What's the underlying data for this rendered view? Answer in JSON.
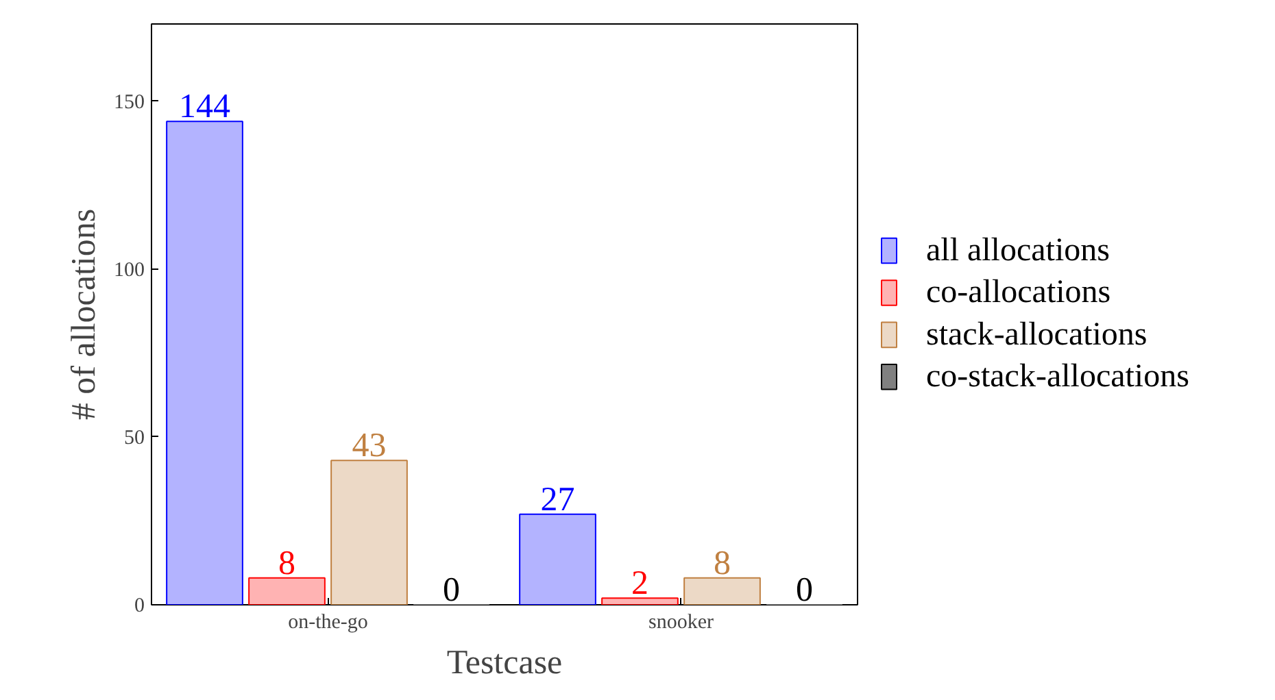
{
  "chart_data": {
    "type": "bar",
    "xlabel": "Testcase",
    "ylabel": "# of allocations",
    "categories": [
      "on-the-go",
      "snooker"
    ],
    "series": [
      {
        "name": "all allocations",
        "color": "#b3b3ff",
        "values": [
          144,
          27
        ]
      },
      {
        "name": "co-allocations",
        "color": "#ffb3b3",
        "values": [
          8,
          2
        ]
      },
      {
        "name": "stack-allocations",
        "color": "#ecd9c6",
        "values": [
          43,
          8
        ]
      },
      {
        "name": "co-stack-allocations",
        "color": "#808080",
        "values": [
          0,
          0
        ]
      }
    ],
    "ylim": [
      0,
      173
    ],
    "yticks": [
      0,
      50,
      100,
      150
    ],
    "data_labels": true,
    "legend": "right",
    "grid": false
  }
}
